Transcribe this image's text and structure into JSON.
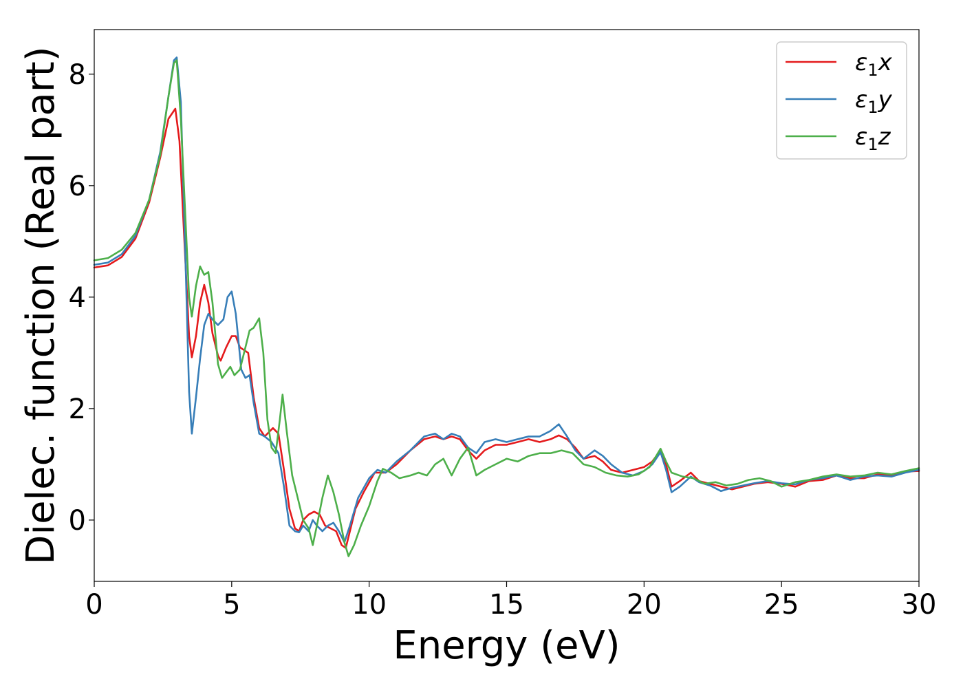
{
  "chart_data": {
    "type": "line",
    "title": "",
    "xlabel": "Energy (eV)",
    "ylabel": "Dielec. function (Real part)",
    "xlim": [
      0,
      30
    ],
    "ylim": [
      -1.1,
      8.8
    ],
    "xticks": [
      0,
      5,
      10,
      15,
      20,
      25,
      30
    ],
    "yticks": [
      0,
      2,
      4,
      6,
      8
    ],
    "grid": false,
    "legend_position": "top-right",
    "series": [
      {
        "name": "ε₁x",
        "legend_base": "ε",
        "legend_sub": "1",
        "legend_suffix": "x",
        "color": "#e41a1c",
        "points": [
          [
            0,
            4.53
          ],
          [
            0.5,
            4.57
          ],
          [
            1.0,
            4.72
          ],
          [
            1.5,
            5.05
          ],
          [
            2.0,
            5.7
          ],
          [
            2.4,
            6.5
          ],
          [
            2.7,
            7.2
          ],
          [
            2.95,
            7.38
          ],
          [
            3.1,
            6.8
          ],
          [
            3.25,
            5.3
          ],
          [
            3.45,
            3.3
          ],
          [
            3.55,
            2.92
          ],
          [
            3.7,
            3.3
          ],
          [
            3.85,
            3.9
          ],
          [
            4.0,
            4.22
          ],
          [
            4.15,
            3.9
          ],
          [
            4.3,
            3.35
          ],
          [
            4.5,
            2.95
          ],
          [
            4.6,
            2.86
          ],
          [
            4.8,
            3.1
          ],
          [
            5.0,
            3.3
          ],
          [
            5.15,
            3.3
          ],
          [
            5.3,
            3.1
          ],
          [
            5.45,
            3.05
          ],
          [
            5.6,
            3.0
          ],
          [
            5.8,
            2.2
          ],
          [
            6.0,
            1.65
          ],
          [
            6.2,
            1.5
          ],
          [
            6.5,
            1.65
          ],
          [
            6.7,
            1.55
          ],
          [
            6.9,
            0.9
          ],
          [
            7.1,
            0.2
          ],
          [
            7.3,
            -0.15
          ],
          [
            7.45,
            -0.2
          ],
          [
            7.6,
            0.0
          ],
          [
            7.8,
            0.1
          ],
          [
            8.0,
            0.15
          ],
          [
            8.2,
            0.1
          ],
          [
            8.4,
            -0.1
          ],
          [
            8.6,
            -0.15
          ],
          [
            8.8,
            -0.2
          ],
          [
            9.0,
            -0.45
          ],
          [
            9.15,
            -0.5
          ],
          [
            9.3,
            -0.2
          ],
          [
            9.5,
            0.2
          ],
          [
            9.8,
            0.5
          ],
          [
            10.2,
            0.85
          ],
          [
            10.6,
            0.85
          ],
          [
            11.0,
            1.0
          ],
          [
            11.5,
            1.25
          ],
          [
            12.0,
            1.45
          ],
          [
            12.4,
            1.5
          ],
          [
            12.7,
            1.45
          ],
          [
            13.0,
            1.5
          ],
          [
            13.3,
            1.45
          ],
          [
            13.6,
            1.25
          ],
          [
            13.9,
            1.1
          ],
          [
            14.2,
            1.25
          ],
          [
            14.6,
            1.35
          ],
          [
            15.0,
            1.35
          ],
          [
            15.4,
            1.4
          ],
          [
            15.8,
            1.45
          ],
          [
            16.2,
            1.4
          ],
          [
            16.6,
            1.45
          ],
          [
            16.9,
            1.52
          ],
          [
            17.2,
            1.45
          ],
          [
            17.5,
            1.3
          ],
          [
            17.8,
            1.1
          ],
          [
            18.2,
            1.15
          ],
          [
            18.5,
            1.05
          ],
          [
            18.8,
            0.9
          ],
          [
            19.2,
            0.85
          ],
          [
            19.6,
            0.9
          ],
          [
            20.0,
            0.95
          ],
          [
            20.3,
            1.05
          ],
          [
            20.6,
            1.25
          ],
          [
            20.8,
            1.0
          ],
          [
            21.0,
            0.6
          ],
          [
            21.3,
            0.7
          ],
          [
            21.7,
            0.85
          ],
          [
            22.0,
            0.7
          ],
          [
            22.4,
            0.65
          ],
          [
            22.8,
            0.6
          ],
          [
            23.2,
            0.55
          ],
          [
            23.6,
            0.6
          ],
          [
            24.0,
            0.65
          ],
          [
            24.5,
            0.68
          ],
          [
            25.0,
            0.65
          ],
          [
            25.5,
            0.6
          ],
          [
            26.0,
            0.7
          ],
          [
            26.5,
            0.72
          ],
          [
            27.0,
            0.8
          ],
          [
            27.5,
            0.75
          ],
          [
            28.0,
            0.75
          ],
          [
            28.5,
            0.82
          ],
          [
            29.0,
            0.8
          ],
          [
            29.5,
            0.87
          ],
          [
            30.0,
            0.88
          ]
        ]
      },
      {
        "name": "ε₁y",
        "legend_base": "ε",
        "legend_sub": "1",
        "legend_suffix": "y",
        "color": "#377eb8",
        "points": [
          [
            0,
            4.58
          ],
          [
            0.5,
            4.62
          ],
          [
            1.0,
            4.77
          ],
          [
            1.5,
            5.1
          ],
          [
            2.0,
            5.75
          ],
          [
            2.4,
            6.6
          ],
          [
            2.7,
            7.6
          ],
          [
            2.9,
            8.25
          ],
          [
            3.0,
            8.3
          ],
          [
            3.15,
            7.5
          ],
          [
            3.3,
            5.0
          ],
          [
            3.45,
            2.3
          ],
          [
            3.55,
            1.55
          ],
          [
            3.7,
            2.2
          ],
          [
            3.85,
            2.9
          ],
          [
            4.0,
            3.5
          ],
          [
            4.15,
            3.7
          ],
          [
            4.3,
            3.6
          ],
          [
            4.5,
            3.5
          ],
          [
            4.7,
            3.6
          ],
          [
            4.85,
            4.0
          ],
          [
            5.0,
            4.1
          ],
          [
            5.15,
            3.7
          ],
          [
            5.35,
            2.7
          ],
          [
            5.5,
            2.55
          ],
          [
            5.65,
            2.6
          ],
          [
            5.8,
            2.1
          ],
          [
            6.0,
            1.55
          ],
          [
            6.2,
            1.5
          ],
          [
            6.45,
            1.4
          ],
          [
            6.7,
            1.2
          ],
          [
            6.9,
            0.6
          ],
          [
            7.1,
            -0.1
          ],
          [
            7.3,
            -0.2
          ],
          [
            7.45,
            -0.22
          ],
          [
            7.6,
            -0.1
          ],
          [
            7.8,
            -0.2
          ],
          [
            7.95,
            0.0
          ],
          [
            8.1,
            -0.1
          ],
          [
            8.3,
            -0.2
          ],
          [
            8.5,
            -0.1
          ],
          [
            8.7,
            -0.05
          ],
          [
            8.9,
            -0.2
          ],
          [
            9.1,
            -0.4
          ],
          [
            9.3,
            -0.1
          ],
          [
            9.6,
            0.4
          ],
          [
            10.0,
            0.75
          ],
          [
            10.3,
            0.9
          ],
          [
            10.6,
            0.85
          ],
          [
            11.0,
            1.05
          ],
          [
            11.5,
            1.25
          ],
          [
            12.0,
            1.5
          ],
          [
            12.4,
            1.55
          ],
          [
            12.7,
            1.45
          ],
          [
            13.0,
            1.55
          ],
          [
            13.3,
            1.5
          ],
          [
            13.6,
            1.3
          ],
          [
            13.9,
            1.2
          ],
          [
            14.2,
            1.4
          ],
          [
            14.6,
            1.45
          ],
          [
            15.0,
            1.4
          ],
          [
            15.4,
            1.45
          ],
          [
            15.8,
            1.5
          ],
          [
            16.2,
            1.5
          ],
          [
            16.6,
            1.6
          ],
          [
            16.9,
            1.72
          ],
          [
            17.2,
            1.5
          ],
          [
            17.5,
            1.25
          ],
          [
            17.8,
            1.1
          ],
          [
            18.2,
            1.25
          ],
          [
            18.5,
            1.15
          ],
          [
            18.8,
            1.0
          ],
          [
            19.2,
            0.85
          ],
          [
            19.6,
            0.8
          ],
          [
            20.0,
            0.88
          ],
          [
            20.3,
            1.0
          ],
          [
            20.6,
            1.22
          ],
          [
            20.8,
            0.9
          ],
          [
            21.0,
            0.5
          ],
          [
            21.3,
            0.6
          ],
          [
            21.7,
            0.78
          ],
          [
            22.0,
            0.68
          ],
          [
            22.4,
            0.62
          ],
          [
            22.8,
            0.52
          ],
          [
            23.2,
            0.58
          ],
          [
            23.6,
            0.62
          ],
          [
            24.0,
            0.66
          ],
          [
            24.5,
            0.7
          ],
          [
            25.0,
            0.66
          ],
          [
            25.5,
            0.64
          ],
          [
            26.0,
            0.72
          ],
          [
            26.5,
            0.75
          ],
          [
            27.0,
            0.8
          ],
          [
            27.5,
            0.72
          ],
          [
            28.0,
            0.78
          ],
          [
            28.5,
            0.8
          ],
          [
            29.0,
            0.78
          ],
          [
            29.5,
            0.85
          ],
          [
            30.0,
            0.9
          ]
        ]
      },
      {
        "name": "ε₁z",
        "legend_base": "ε",
        "legend_sub": "1",
        "legend_suffix": "z",
        "color": "#4daf4a",
        "points": [
          [
            0,
            4.66
          ],
          [
            0.5,
            4.7
          ],
          [
            1.0,
            4.85
          ],
          [
            1.5,
            5.15
          ],
          [
            2.0,
            5.75
          ],
          [
            2.4,
            6.55
          ],
          [
            2.7,
            7.6
          ],
          [
            2.9,
            8.2
          ],
          [
            3.0,
            8.25
          ],
          [
            3.15,
            7.2
          ],
          [
            3.3,
            5.6
          ],
          [
            3.45,
            4.0
          ],
          [
            3.55,
            3.65
          ],
          [
            3.7,
            4.2
          ],
          [
            3.85,
            4.55
          ],
          [
            4.0,
            4.4
          ],
          [
            4.15,
            4.45
          ],
          [
            4.3,
            3.9
          ],
          [
            4.5,
            2.8
          ],
          [
            4.65,
            2.55
          ],
          [
            4.8,
            2.65
          ],
          [
            4.95,
            2.75
          ],
          [
            5.1,
            2.6
          ],
          [
            5.3,
            2.7
          ],
          [
            5.5,
            3.1
          ],
          [
            5.65,
            3.4
          ],
          [
            5.8,
            3.45
          ],
          [
            6.0,
            3.62
          ],
          [
            6.15,
            3.0
          ],
          [
            6.3,
            1.8
          ],
          [
            6.45,
            1.3
          ],
          [
            6.6,
            1.2
          ],
          [
            6.75,
            1.8
          ],
          [
            6.85,
            2.25
          ],
          [
            7.0,
            1.6
          ],
          [
            7.2,
            0.8
          ],
          [
            7.4,
            0.4
          ],
          [
            7.6,
            0.0
          ],
          [
            7.8,
            -0.15
          ],
          [
            7.95,
            -0.45
          ],
          [
            8.1,
            -0.1
          ],
          [
            8.3,
            0.4
          ],
          [
            8.5,
            0.8
          ],
          [
            8.7,
            0.5
          ],
          [
            8.9,
            0.1
          ],
          [
            9.1,
            -0.4
          ],
          [
            9.25,
            -0.65
          ],
          [
            9.45,
            -0.45
          ],
          [
            9.7,
            -0.1
          ],
          [
            10.0,
            0.25
          ],
          [
            10.3,
            0.7
          ],
          [
            10.5,
            0.92
          ],
          [
            10.8,
            0.85
          ],
          [
            11.1,
            0.75
          ],
          [
            11.5,
            0.8
          ],
          [
            11.8,
            0.85
          ],
          [
            12.1,
            0.8
          ],
          [
            12.4,
            1.0
          ],
          [
            12.7,
            1.1
          ],
          [
            13.0,
            0.8
          ],
          [
            13.3,
            1.1
          ],
          [
            13.6,
            1.3
          ],
          [
            13.9,
            0.8
          ],
          [
            14.2,
            0.9
          ],
          [
            14.6,
            1.0
          ],
          [
            15.0,
            1.1
          ],
          [
            15.4,
            1.05
          ],
          [
            15.8,
            1.15
          ],
          [
            16.2,
            1.2
          ],
          [
            16.6,
            1.2
          ],
          [
            17.0,
            1.25
          ],
          [
            17.4,
            1.2
          ],
          [
            17.8,
            1.0
          ],
          [
            18.2,
            0.95
          ],
          [
            18.6,
            0.85
          ],
          [
            19.0,
            0.8
          ],
          [
            19.4,
            0.78
          ],
          [
            19.8,
            0.82
          ],
          [
            20.2,
            0.95
          ],
          [
            20.6,
            1.28
          ],
          [
            20.8,
            1.05
          ],
          [
            21.0,
            0.85
          ],
          [
            21.4,
            0.78
          ],
          [
            21.8,
            0.75
          ],
          [
            22.2,
            0.65
          ],
          [
            22.6,
            0.68
          ],
          [
            23.0,
            0.62
          ],
          [
            23.4,
            0.65
          ],
          [
            23.8,
            0.72
          ],
          [
            24.2,
            0.75
          ],
          [
            24.6,
            0.7
          ],
          [
            25.0,
            0.6
          ],
          [
            25.5,
            0.68
          ],
          [
            26.0,
            0.72
          ],
          [
            26.5,
            0.78
          ],
          [
            27.0,
            0.82
          ],
          [
            27.5,
            0.78
          ],
          [
            28.0,
            0.8
          ],
          [
            28.5,
            0.85
          ],
          [
            29.0,
            0.82
          ],
          [
            29.5,
            0.88
          ],
          [
            30.0,
            0.93
          ]
        ]
      }
    ]
  }
}
